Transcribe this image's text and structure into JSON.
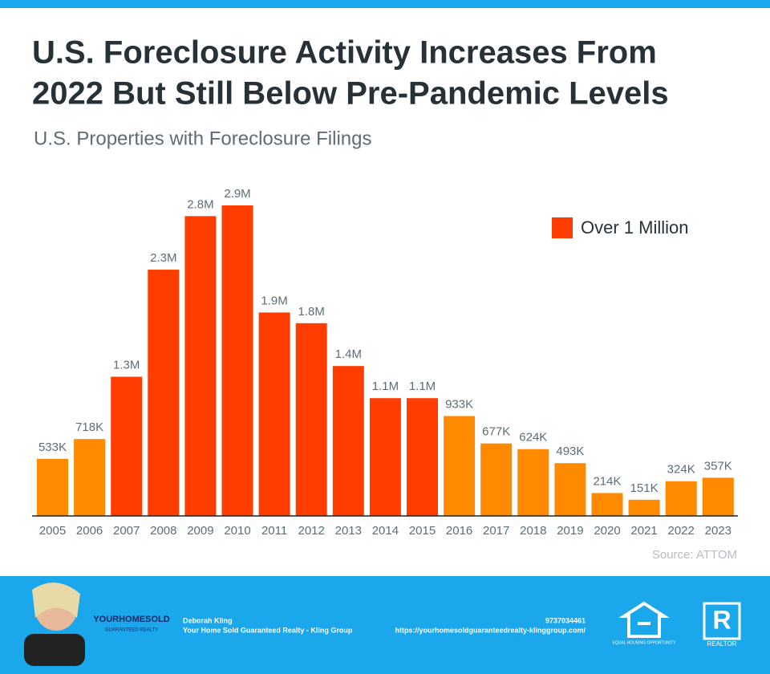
{
  "chart_data": {
    "type": "bar",
    "title": [
      "U.S. Foreclosure Activity Increases From",
      "2022 But Still Below Pre-Pandemic Levels"
    ],
    "subtitle": "U.S. Properties with Foreclosure Filings",
    "categories": [
      "2005",
      "2006",
      "2007",
      "2008",
      "2009",
      "2010",
      "2011",
      "2012",
      "2013",
      "2014",
      "2015",
      "2016",
      "2017",
      "2018",
      "2019",
      "2020",
      "2021",
      "2022",
      "2023"
    ],
    "values": [
      533000,
      718000,
      1300000,
      2300000,
      2800000,
      2900000,
      1900000,
      1800000,
      1400000,
      1100000,
      1100000,
      933000,
      677000,
      624000,
      493000,
      214000,
      151000,
      324000,
      357000
    ],
    "value_labels": [
      "533K",
      "718K",
      "1.3M",
      "2.3M",
      "2.8M",
      "2.9M",
      "1.9M",
      "1.8M",
      "1.4M",
      "1.1M",
      "1.1M",
      "933K",
      "677K",
      "624K",
      "493K",
      "214K",
      "151K",
      "324K",
      "357K"
    ],
    "colors": [
      "#ff8a00",
      "#ff8a00",
      "#ff3d00",
      "#ff3d00",
      "#ff3d00",
      "#ff3d00",
      "#ff3d00",
      "#ff3d00",
      "#ff3d00",
      "#ff3d00",
      "#ff3d00",
      "#ff8a00",
      "#ff8a00",
      "#ff8a00",
      "#ff8a00",
      "#ff8a00",
      "#ff8a00",
      "#ff8a00",
      "#ff8a00"
    ],
    "legend": {
      "label": "Over 1 Million",
      "color": "#ff3d00",
      "position": "upper right"
    },
    "source": "Source: ATTOM"
  },
  "footer": {
    "name": "Deborah Kling",
    "company": "Your Home Sold Guaranteed Realty - Kling Group",
    "phone": "9737034461",
    "url": "https://yourhomesoldguaranteedrealty-klinggroup.com/",
    "logo": [
      "YOURHOMESOLD",
      "GUARANTEED REALTY"
    ],
    "eho": "EQUAL HOUSING OPPORTUNITY",
    "realtor": "REALTOR"
  }
}
